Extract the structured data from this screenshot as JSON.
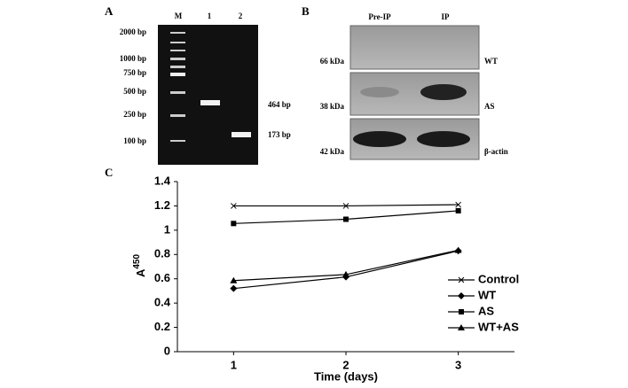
{
  "panels": {
    "a": {
      "label": "A",
      "lanes": [
        "M",
        "1",
        "2"
      ],
      "ladder": [
        "2000 bp",
        "1000 bp",
        "750 bp",
        "500 bp",
        "250 bp",
        "100 bp"
      ],
      "bands": [
        "464 bp",
        "173 bp"
      ]
    },
    "b": {
      "label": "B",
      "lanes": [
        "Pre-IP",
        "IP"
      ],
      "sizes": [
        "66 kDa",
        "38 kDa",
        "42 kDa"
      ],
      "targets": [
        "WT",
        "AS",
        "β-actin"
      ]
    }
  },
  "chart_data": {
    "type": "line",
    "label": "C",
    "xlabel": "Time (days)",
    "ylabel": "A",
    "ylabel_sup": "450",
    "x": [
      1,
      2,
      3
    ],
    "xlim": [
      0.5,
      3.5
    ],
    "xticks": [
      1,
      2,
      3
    ],
    "ylim": [
      0,
      1.4
    ],
    "yticks": [
      0,
      0.2,
      0.4,
      0.6,
      0.8,
      1,
      1.2,
      1.4
    ],
    "legend": "lower right",
    "series": [
      {
        "name": "Control",
        "color": "#000000",
        "marker": "x",
        "values": [
          1.2,
          1.2,
          1.21
        ]
      },
      {
        "name": "WT",
        "color": "#000000",
        "marker": "diamond",
        "values": [
          0.52,
          0.615,
          0.83
        ]
      },
      {
        "name": "AS",
        "color": "#000000",
        "marker": "square",
        "values": [
          1.055,
          1.09,
          1.16
        ]
      },
      {
        "name": "WT+AS",
        "color": "#000000",
        "marker": "triangle",
        "values": [
          0.585,
          0.635,
          0.835
        ]
      }
    ]
  }
}
